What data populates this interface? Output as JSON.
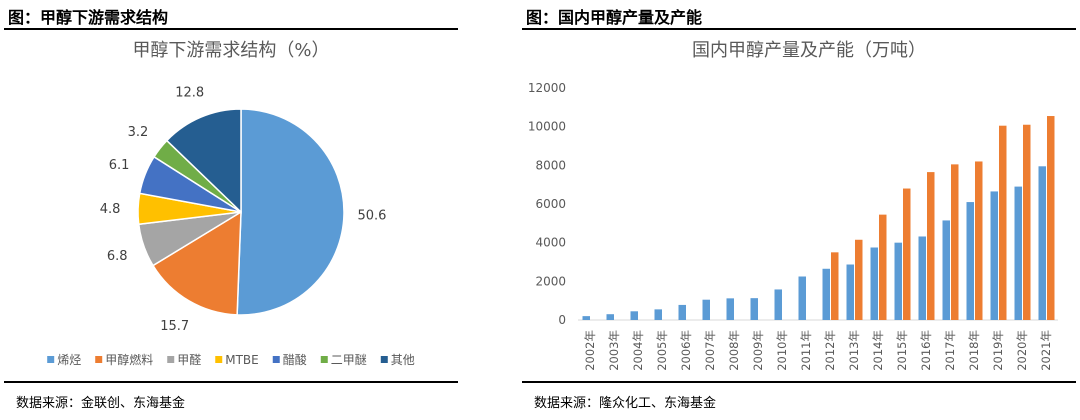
{
  "left": {
    "figure_title": "图：甲醇下游需求结构",
    "source": "数据来源：金联创、东海基金"
  },
  "right": {
    "figure_title": "图：国内甲醇产量及产能",
    "source": "数据来源：隆众化工、东海基金"
  },
  "chart_data": [
    {
      "type": "pie",
      "title": "甲醇下游需求结构（%）",
      "legend_position": "bottom",
      "slices": [
        {
          "label": "烯烃",
          "value": 50.6,
          "value_label": "50.6",
          "color": "#5b9bd5"
        },
        {
          "label": "甲醇燃料",
          "value": 15.7,
          "value_label": "15.7",
          "color": "#ed7d31"
        },
        {
          "label": "甲醛",
          "value": 6.8,
          "value_label": "6.8",
          "color": "#a5a5a5"
        },
        {
          "label": "MTBE",
          "value": 4.8,
          "value_label": "4.8",
          "color": "#ffc000"
        },
        {
          "label": "醋酸",
          "value": 6.1,
          "value_label": "6.1",
          "color": "#4472c4"
        },
        {
          "label": "二甲醚",
          "value": 3.2,
          "value_label": "3.2",
          "color": "#70ad47"
        },
        {
          "label": "其他",
          "value": 12.8,
          "value_label": "12.8",
          "color": "#255e91"
        }
      ]
    },
    {
      "type": "bar",
      "title": "国内甲醇产量及产能（万吨）",
      "ylim": [
        0,
        12000
      ],
      "yticks": [
        0,
        2000,
        4000,
        6000,
        8000,
        10000,
        12000
      ],
      "ytick_labels": [
        "0",
        "2000",
        "4000",
        "6000",
        "8000",
        "10000",
        "12000"
      ],
      "grid": false,
      "categories": [
        "2002年",
        "2003年",
        "2004年",
        "2005年",
        "2006年",
        "2007年",
        "2008年",
        "2009年",
        "2010年",
        "2011年",
        "2012年",
        "2013年",
        "2014年",
        "2015年",
        "2016年",
        "2017年",
        "2018年",
        "2019年",
        "2020年",
        "2021年"
      ],
      "series": [
        {
          "color": "#5b9bd5",
          "values": [
            200,
            300,
            450,
            550,
            780,
            1050,
            1120,
            1130,
            1580,
            2250,
            2650,
            2870,
            3750,
            4000,
            4320,
            5150,
            6100,
            6650,
            6900,
            7950
          ]
        },
        {
          "color": "#ed7d31",
          "values": [
            null,
            null,
            null,
            null,
            null,
            null,
            null,
            null,
            null,
            null,
            3500,
            4150,
            5450,
            6800,
            7650,
            8050,
            8200,
            10050,
            10100,
            10550
          ]
        }
      ]
    }
  ]
}
